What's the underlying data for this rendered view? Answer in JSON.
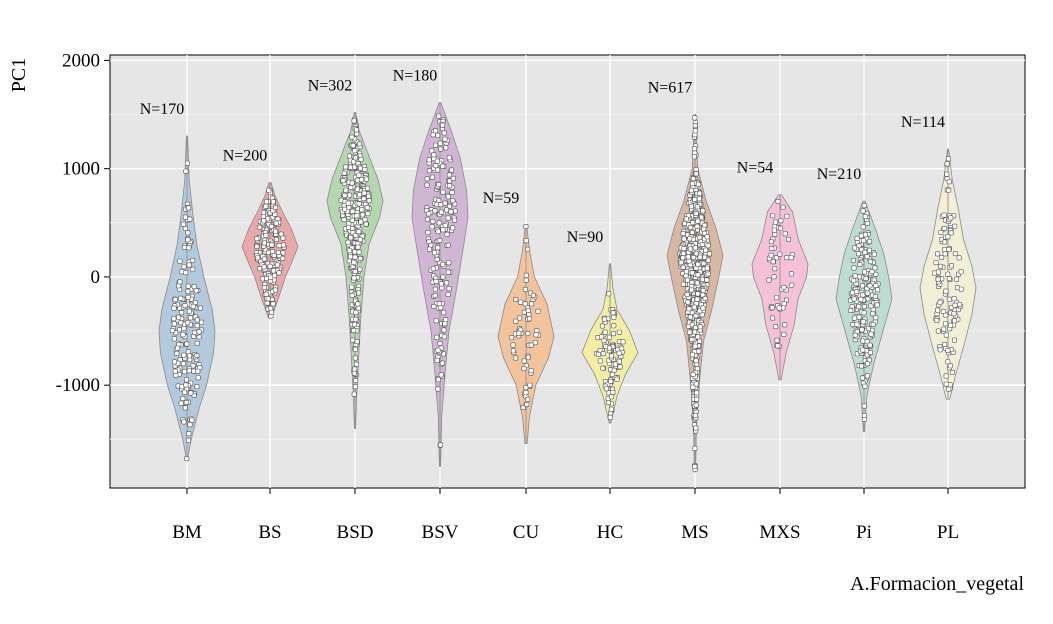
{
  "chart_data": {
    "type": "violin",
    "ylabel": "PC1",
    "xlabel": "A.Formacion_vegetal",
    "ylim": [
      -1950,
      2050
    ],
    "yticks": [
      -1000,
      0,
      1000,
      2000
    ],
    "ytick_labels": [
      "-1000",
      "0",
      "1000",
      "2000"
    ],
    "grid": true,
    "categories": [
      "BM",
      "BS",
      "BSD",
      "BSV",
      "CU",
      "HC",
      "MS",
      "MXS",
      "Pi",
      "PL"
    ],
    "series": [
      {
        "category": "BM",
        "n_label": "N=170",
        "n": 170,
        "color": "#b3c9dd",
        "min": -1680,
        "max": 1300,
        "density": [
          [
            -1680,
            0.02
          ],
          [
            -1500,
            0.15
          ],
          [
            -1200,
            0.45
          ],
          [
            -1000,
            0.7
          ],
          [
            -700,
            0.95
          ],
          [
            -500,
            1.0
          ],
          [
            -300,
            0.9
          ],
          [
            0,
            0.6
          ],
          [
            300,
            0.35
          ],
          [
            600,
            0.2
          ],
          [
            900,
            0.08
          ],
          [
            1300,
            0.02
          ]
        ]
      },
      {
        "category": "BS",
        "n_label": "N=200",
        "n": 200,
        "color": "#eba8a9",
        "min": -380,
        "max": 870,
        "density": [
          [
            -380,
            0.05
          ],
          [
            -200,
            0.3
          ],
          [
            0,
            0.55
          ],
          [
            100,
            0.72
          ],
          [
            280,
            1.0
          ],
          [
            450,
            0.75
          ],
          [
            600,
            0.45
          ],
          [
            750,
            0.18
          ],
          [
            870,
            0.04
          ]
        ]
      },
      {
        "category": "BSD",
        "n_label": "N=302",
        "n": 302,
        "color": "#b4d7b0",
        "min": -1400,
        "max": 1520,
        "density": [
          [
            -1400,
            0.02
          ],
          [
            -1100,
            0.06
          ],
          [
            -700,
            0.14
          ],
          [
            -400,
            0.2
          ],
          [
            0,
            0.32
          ],
          [
            300,
            0.5
          ],
          [
            550,
            0.88
          ],
          [
            700,
            1.0
          ],
          [
            900,
            0.82
          ],
          [
            1150,
            0.45
          ],
          [
            1350,
            0.15
          ],
          [
            1520,
            0.02
          ]
        ]
      },
      {
        "category": "BSV",
        "n_label": "N=180",
        "n": 180,
        "color": "#d0b6d4",
        "min": -1750,
        "max": 1610,
        "density": [
          [
            -1750,
            0.02
          ],
          [
            -1300,
            0.06
          ],
          [
            -900,
            0.18
          ],
          [
            -500,
            0.32
          ],
          [
            -100,
            0.6
          ],
          [
            300,
            0.85
          ],
          [
            550,
            1.0
          ],
          [
            800,
            0.95
          ],
          [
            1100,
            0.72
          ],
          [
            1350,
            0.4
          ],
          [
            1610,
            0.03
          ]
        ]
      },
      {
        "category": "CU",
        "n_label": "N=59",
        "n": 59,
        "color": "#f3c49b",
        "min": -1540,
        "max": 480,
        "density": [
          [
            -1540,
            0.04
          ],
          [
            -1300,
            0.12
          ],
          [
            -1000,
            0.35
          ],
          [
            -750,
            0.8
          ],
          [
            -550,
            1.0
          ],
          [
            -250,
            0.75
          ],
          [
            0,
            0.3
          ],
          [
            250,
            0.12
          ],
          [
            480,
            0.02
          ]
        ]
      },
      {
        "category": "HC",
        "n_label": "N=90",
        "n": 90,
        "color": "#f3eea2",
        "min": -1350,
        "max": 120,
        "density": [
          [
            -1350,
            0.03
          ],
          [
            -1100,
            0.25
          ],
          [
            -900,
            0.55
          ],
          [
            -700,
            1.0
          ],
          [
            -500,
            0.7
          ],
          [
            -300,
            0.25
          ],
          [
            -100,
            0.1
          ],
          [
            120,
            0.02
          ]
        ]
      },
      {
        "category": "MS",
        "n_label": "N=617",
        "n": 617,
        "color": "#d9b8a3",
        "min": -1800,
        "max": 1500,
        "density": [
          [
            -1800,
            0.02
          ],
          [
            -1400,
            0.05
          ],
          [
            -1000,
            0.15
          ],
          [
            -600,
            0.3
          ],
          [
            -300,
            0.6
          ],
          [
            0,
            0.85
          ],
          [
            200,
            1.0
          ],
          [
            450,
            0.75
          ],
          [
            700,
            0.4
          ],
          [
            1000,
            0.1
          ],
          [
            1300,
            0.04
          ],
          [
            1500,
            0.02
          ]
        ]
      },
      {
        "category": "MXS",
        "n_label": "N=54",
        "n": 54,
        "color": "#f5c1d9",
        "min": -950,
        "max": 760,
        "density": [
          [
            -950,
            0.04
          ],
          [
            -700,
            0.22
          ],
          [
            -450,
            0.5
          ],
          [
            -200,
            0.65
          ],
          [
            0,
            0.95
          ],
          [
            120,
            1.0
          ],
          [
            350,
            0.65
          ],
          [
            600,
            0.45
          ],
          [
            760,
            0.05
          ]
        ]
      },
      {
        "category": "Pi",
        "n_label": "N=210",
        "n": 210,
        "color": "#bcdcd4",
        "min": -1430,
        "max": 700,
        "density": [
          [
            -1430,
            0.02
          ],
          [
            -1100,
            0.1
          ],
          [
            -800,
            0.35
          ],
          [
            -500,
            0.68
          ],
          [
            -200,
            1.0
          ],
          [
            0,
            0.88
          ],
          [
            200,
            0.72
          ],
          [
            450,
            0.4
          ],
          [
            700,
            0.04
          ]
        ]
      },
      {
        "category": "PL",
        "n_label": "N=114",
        "n": 114,
        "color": "#f2efd6",
        "min": -1130,
        "max": 1180,
        "density": [
          [
            -1130,
            0.06
          ],
          [
            -900,
            0.28
          ],
          [
            -650,
            0.55
          ],
          [
            -350,
            0.85
          ],
          [
            -100,
            1.0
          ],
          [
            100,
            0.85
          ],
          [
            350,
            0.55
          ],
          [
            650,
            0.35
          ],
          [
            900,
            0.15
          ],
          [
            1180,
            0.02
          ]
        ]
      }
    ],
    "colors": {
      "panel": "#e6e6e6",
      "grid_major": "#ffffff",
      "grid_minor": "#f0f0f0",
      "outline": "#8a8a8a",
      "point_fill": "#ffffff",
      "point_stroke": "#555555"
    }
  }
}
